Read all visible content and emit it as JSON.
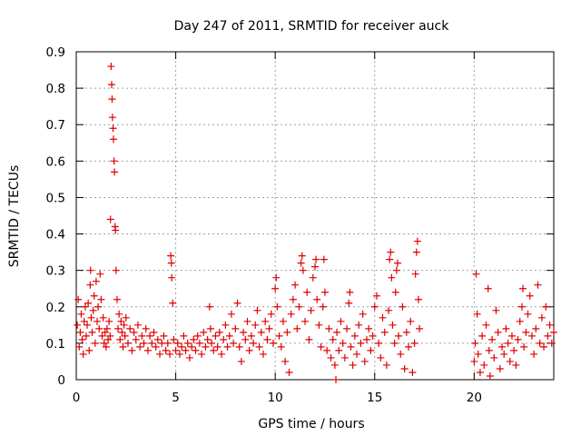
{
  "chart_data": {
    "type": "scatter",
    "title": "Day 247 of 2011, SRMTID for receiver auck",
    "xlabel": "GPS time / hours",
    "ylabel": "SRMTID / TECUs",
    "xlim": [
      0,
      24
    ],
    "ylim": [
      0,
      0.9
    ],
    "xticks": [
      0,
      5,
      10,
      15,
      20
    ],
    "xtick_labels": [
      "0",
      "5",
      "10",
      "15",
      "20"
    ],
    "yticks": [
      0,
      0.1,
      0.2,
      0.3,
      0.4,
      0.5,
      0.6,
      0.7,
      0.8,
      0.9
    ],
    "ytick_labels": [
      "0",
      "0.1",
      "0.2",
      "0.3",
      "0.4",
      "0.5",
      "0.6",
      "0.7",
      "0.8",
      "0.9"
    ],
    "grid": true,
    "marker": "+",
    "marker_color": "#e00000",
    "series": [
      {
        "name": "SRMTID",
        "points": [
          [
            0.05,
            0.15
          ],
          [
            0.1,
            0.22
          ],
          [
            0.15,
            0.09
          ],
          [
            0.2,
            0.13
          ],
          [
            0.25,
            0.18
          ],
          [
            0.3,
            0.11
          ],
          [
            0.35,
            0.07
          ],
          [
            0.4,
            0.16
          ],
          [
            0.45,
            0.2
          ],
          [
            0.5,
            0.12
          ],
          [
            0.55,
            0.15
          ],
          [
            0.6,
            0.21
          ],
          [
            0.65,
            0.08
          ],
          [
            0.7,
            0.26
          ],
          [
            0.72,
            0.3
          ],
          [
            0.75,
            0.17
          ],
          [
            0.8,
            0.13
          ],
          [
            0.85,
            0.19
          ],
          [
            0.9,
            0.23
          ],
          [
            0.95,
            0.1
          ],
          [
            1.0,
            0.27
          ],
          [
            1.05,
            0.16
          ],
          [
            1.1,
            0.2
          ],
          [
            1.15,
            0.14
          ],
          [
            1.2,
            0.29
          ],
          [
            1.25,
            0.22
          ],
          [
            1.3,
            0.12
          ],
          [
            1.35,
            0.17
          ],
          [
            1.4,
            0.1
          ],
          [
            1.45,
            0.13
          ],
          [
            1.5,
            0.09
          ],
          [
            1.55,
            0.14
          ],
          [
            1.6,
            0.11
          ],
          [
            1.65,
            0.16
          ],
          [
            1.7,
            0.12
          ],
          [
            1.72,
            0.44
          ],
          [
            1.75,
            0.86
          ],
          [
            1.78,
            0.81
          ],
          [
            1.8,
            0.77
          ],
          [
            1.82,
            0.72
          ],
          [
            1.85,
            0.69
          ],
          [
            1.87,
            0.66
          ],
          [
            1.9,
            0.6
          ],
          [
            1.92,
            0.57
          ],
          [
            1.95,
            0.42
          ],
          [
            1.97,
            0.41
          ],
          [
            2.0,
            0.3
          ],
          [
            2.05,
            0.22
          ],
          [
            2.1,
            0.14
          ],
          [
            2.15,
            0.18
          ],
          [
            2.2,
            0.11
          ],
          [
            2.25,
            0.16
          ],
          [
            2.3,
            0.13
          ],
          [
            2.35,
            0.09
          ],
          [
            2.4,
            0.15
          ],
          [
            2.45,
            0.12
          ],
          [
            2.5,
            0.17
          ],
          [
            2.6,
            0.1
          ],
          [
            2.7,
            0.14
          ],
          [
            2.8,
            0.08
          ],
          [
            2.9,
            0.13
          ],
          [
            3.0,
            0.11
          ],
          [
            3.1,
            0.15
          ],
          [
            3.2,
            0.09
          ],
          [
            3.3,
            0.12
          ],
          [
            3.4,
            0.1
          ],
          [
            3.5,
            0.14
          ],
          [
            3.6,
            0.08
          ],
          [
            3.7,
            0.12
          ],
          [
            3.8,
            0.1
          ],
          [
            3.9,
            0.13
          ],
          [
            4.0,
            0.09
          ],
          [
            4.1,
            0.11
          ],
          [
            4.2,
            0.07
          ],
          [
            4.3,
            0.1
          ],
          [
            4.4,
            0.12
          ],
          [
            4.5,
            0.08
          ],
          [
            4.6,
            0.1
          ],
          [
            4.7,
            0.07
          ],
          [
            4.75,
            0.34
          ],
          [
            4.78,
            0.32
          ],
          [
            4.8,
            0.28
          ],
          [
            4.85,
            0.21
          ],
          [
            4.9,
            0.11
          ],
          [
            5.0,
            0.08
          ],
          [
            5.1,
            0.1
          ],
          [
            5.2,
            0.07
          ],
          [
            5.3,
            0.09
          ],
          [
            5.4,
            0.12
          ],
          [
            5.5,
            0.08
          ],
          [
            5.6,
            0.1
          ],
          [
            5.7,
            0.06
          ],
          [
            5.8,
            0.09
          ],
          [
            5.9,
            0.11
          ],
          [
            6.0,
            0.08
          ],
          [
            6.1,
            0.12
          ],
          [
            6.2,
            0.1
          ],
          [
            6.3,
            0.07
          ],
          [
            6.4,
            0.13
          ],
          [
            6.5,
            0.09
          ],
          [
            6.6,
            0.11
          ],
          [
            6.7,
            0.2
          ],
          [
            6.75,
            0.14
          ],
          [
            6.8,
            0.1
          ],
          [
            6.9,
            0.08
          ],
          [
            7.0,
            0.12
          ],
          [
            7.1,
            0.09
          ],
          [
            7.2,
            0.13
          ],
          [
            7.3,
            0.07
          ],
          [
            7.4,
            0.11
          ],
          [
            7.5,
            0.15
          ],
          [
            7.6,
            0.09
          ],
          [
            7.7,
            0.12
          ],
          [
            7.8,
            0.18
          ],
          [
            7.9,
            0.1
          ],
          [
            8.0,
            0.14
          ],
          [
            8.1,
            0.21
          ],
          [
            8.2,
            0.09
          ],
          [
            8.3,
            0.05
          ],
          [
            8.4,
            0.13
          ],
          [
            8.5,
            0.11
          ],
          [
            8.6,
            0.16
          ],
          [
            8.7,
            0.08
          ],
          [
            8.8,
            0.12
          ],
          [
            8.9,
            0.1
          ],
          [
            9.0,
            0.15
          ],
          [
            9.1,
            0.19
          ],
          [
            9.2,
            0.09
          ],
          [
            9.3,
            0.13
          ],
          [
            9.4,
            0.07
          ],
          [
            9.5,
            0.16
          ],
          [
            9.6,
            0.11
          ],
          [
            9.7,
            0.14
          ],
          [
            9.8,
            0.18
          ],
          [
            9.9,
            0.1
          ],
          [
            10.0,
            0.25
          ],
          [
            10.05,
            0.28
          ],
          [
            10.1,
            0.2
          ],
          [
            10.2,
            0.12
          ],
          [
            10.3,
            0.09
          ],
          [
            10.4,
            0.16
          ],
          [
            10.5,
            0.05
          ],
          [
            10.6,
            0.13
          ],
          [
            10.7,
            0.02
          ],
          [
            10.8,
            0.18
          ],
          [
            10.9,
            0.22
          ],
          [
            11.0,
            0.26
          ],
          [
            11.1,
            0.14
          ],
          [
            11.2,
            0.2
          ],
          [
            11.3,
            0.32
          ],
          [
            11.35,
            0.34
          ],
          [
            11.4,
            0.3
          ],
          [
            11.5,
            0.16
          ],
          [
            11.6,
            0.24
          ],
          [
            11.7,
            0.11
          ],
          [
            11.8,
            0.19
          ],
          [
            11.9,
            0.28
          ],
          [
            12.0,
            0.31
          ],
          [
            12.05,
            0.33
          ],
          [
            12.1,
            0.22
          ],
          [
            12.2,
            0.15
          ],
          [
            12.3,
            0.09
          ],
          [
            12.4,
            0.2
          ],
          [
            12.45,
            0.33
          ],
          [
            12.5,
            0.24
          ],
          [
            12.6,
            0.08
          ],
          [
            12.7,
            0.14
          ],
          [
            12.8,
            0.06
          ],
          [
            12.9,
            0.11
          ],
          [
            13.0,
            0.04
          ],
          [
            13.05,
            0.0
          ],
          [
            13.1,
            0.13
          ],
          [
            13.2,
            0.08
          ],
          [
            13.3,
            0.16
          ],
          [
            13.4,
            0.1
          ],
          [
            13.5,
            0.06
          ],
          [
            13.6,
            0.14
          ],
          [
            13.7,
            0.21
          ],
          [
            13.75,
            0.24
          ],
          [
            13.8,
            0.09
          ],
          [
            13.9,
            0.04
          ],
          [
            14.0,
            0.12
          ],
          [
            14.1,
            0.07
          ],
          [
            14.2,
            0.15
          ],
          [
            14.3,
            0.1
          ],
          [
            14.4,
            0.18
          ],
          [
            14.5,
            0.05
          ],
          [
            14.6,
            0.11
          ],
          [
            14.7,
            0.14
          ],
          [
            14.8,
            0.08
          ],
          [
            14.9,
            0.12
          ],
          [
            15.0,
            0.2
          ],
          [
            15.1,
            0.23
          ],
          [
            15.2,
            0.1
          ],
          [
            15.3,
            0.06
          ],
          [
            15.4,
            0.17
          ],
          [
            15.5,
            0.13
          ],
          [
            15.6,
            0.04
          ],
          [
            15.7,
            0.19
          ],
          [
            15.75,
            0.33
          ],
          [
            15.8,
            0.35
          ],
          [
            15.85,
            0.28
          ],
          [
            15.9,
            0.15
          ],
          [
            16.0,
            0.1
          ],
          [
            16.05,
            0.24
          ],
          [
            16.1,
            0.3
          ],
          [
            16.15,
            0.32
          ],
          [
            16.2,
            0.12
          ],
          [
            16.3,
            0.07
          ],
          [
            16.4,
            0.2
          ],
          [
            16.5,
            0.03
          ],
          [
            16.6,
            0.13
          ],
          [
            16.7,
            0.09
          ],
          [
            16.8,
            0.16
          ],
          [
            16.9,
            0.02
          ],
          [
            17.0,
            0.1
          ],
          [
            17.05,
            0.29
          ],
          [
            17.1,
            0.35
          ],
          [
            17.15,
            0.38
          ],
          [
            17.2,
            0.22
          ],
          [
            17.25,
            0.14
          ],
          [
            20.0,
            0.05
          ],
          [
            20.05,
            0.1
          ],
          [
            20.1,
            0.29
          ],
          [
            20.15,
            0.18
          ],
          [
            20.2,
            0.07
          ],
          [
            20.3,
            0.02
          ],
          [
            20.4,
            0.12
          ],
          [
            20.5,
            0.04
          ],
          [
            20.6,
            0.15
          ],
          [
            20.7,
            0.25
          ],
          [
            20.75,
            0.08
          ],
          [
            20.8,
            0.01
          ],
          [
            20.9,
            0.11
          ],
          [
            21.0,
            0.06
          ],
          [
            21.1,
            0.19
          ],
          [
            21.2,
            0.13
          ],
          [
            21.3,
            0.03
          ],
          [
            21.4,
            0.09
          ],
          [
            21.5,
            0.07
          ],
          [
            21.6,
            0.14
          ],
          [
            21.7,
            0.1
          ],
          [
            21.8,
            0.05
          ],
          [
            21.9,
            0.12
          ],
          [
            22.0,
            0.08
          ],
          [
            22.1,
            0.04
          ],
          [
            22.2,
            0.11
          ],
          [
            22.3,
            0.16
          ],
          [
            22.4,
            0.2
          ],
          [
            22.45,
            0.25
          ],
          [
            22.5,
            0.09
          ],
          [
            22.6,
            0.13
          ],
          [
            22.7,
            0.18
          ],
          [
            22.8,
            0.23
          ],
          [
            22.9,
            0.12
          ],
          [
            23.0,
            0.07
          ],
          [
            23.1,
            0.14
          ],
          [
            23.2,
            0.26
          ],
          [
            23.3,
            0.1
          ],
          [
            23.4,
            0.17
          ],
          [
            23.5,
            0.09
          ],
          [
            23.6,
            0.2
          ],
          [
            23.7,
            0.12
          ],
          [
            23.8,
            0.15
          ],
          [
            23.9,
            0.1
          ],
          [
            24.0,
            0.13
          ]
        ]
      }
    ]
  }
}
